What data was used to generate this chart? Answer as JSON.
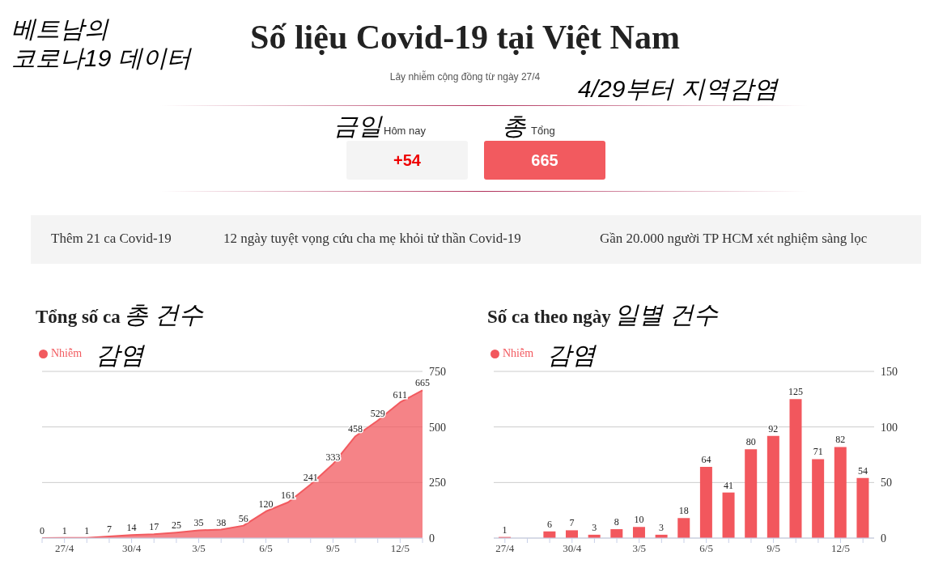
{
  "chart_data": [
    {
      "type": "other",
      "title": "Số liệu Covid-19 tại Việt Nam",
      "subtitle": "Lây nhiễm cộng đồng từ ngày 27/4",
      "annotations": [
        "베트남의\n코로나19 데이터",
        "4/29부터 지역감염",
        "금일",
        "Hôm nay",
        "+54",
        "총",
        "Tổng",
        "665",
        "Thêm 21 ca Covid-19",
        "12 ngày tuyệt vọng cứu cha mẹ khỏi tử thần Covid-19",
        "Gần 20.000 người TP HCM xét nghiệm sàng lọc"
      ]
    },
    {
      "type": "area",
      "title": "Tổng số ca",
      "annotations": [
        "총 건수",
        "감염"
      ],
      "categories": [
        null,
        "27/4",
        null,
        null,
        "30/4",
        null,
        null,
        "3/5",
        null,
        null,
        "6/5",
        null,
        null,
        "9/5",
        null,
        null,
        "12/5",
        null
      ],
      "series": [
        {
          "name": "Nhiễm",
          "color": "#f25a5f",
          "values": [
            0,
            1,
            1,
            7,
            14,
            17,
            25,
            35,
            38,
            56,
            120,
            161,
            241,
            333,
            458,
            529,
            611,
            665
          ]
        }
      ],
      "ylim": [
        0,
        750
      ],
      "yticks": [
        0,
        250,
        500,
        750
      ],
      "grid": "y",
      "legend": "top left",
      "data_labels": true,
      "marker": "none"
    },
    {
      "type": "bar",
      "title": "Số ca theo ngày",
      "annotations": [
        "일별 건수",
        "감염"
      ],
      "categories": [
        "27/4",
        null,
        null,
        "30/4",
        null,
        null,
        "3/5",
        null,
        null,
        "6/5",
        null,
        null,
        "9/5",
        null,
        null,
        "12/5",
        null
      ],
      "series": [
        {
          "name": "Nhiễm",
          "color": "#f2575d",
          "values": [
            1,
            0,
            6,
            7,
            3,
            8,
            10,
            3,
            18,
            64,
            41,
            80,
            92,
            125,
            71,
            82,
            54
          ],
          "value_labels": [
            "1",
            null,
            "6",
            "7",
            "3",
            "8",
            "10",
            "3",
            "18",
            "64",
            "41",
            "80",
            "92",
            "125",
            "71",
            "82",
            "54"
          ]
        }
      ],
      "ylim": [
        0,
        150
      ],
      "yticks": [
        0,
        50,
        100,
        150
      ],
      "grid": "y",
      "legend": "top left"
    }
  ]
}
